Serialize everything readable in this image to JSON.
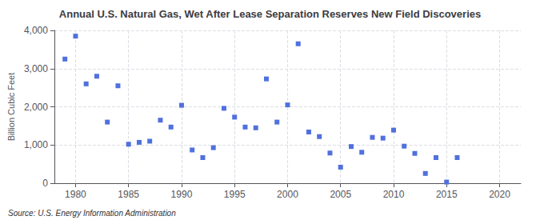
{
  "chart_data": {
    "type": "scatter",
    "title": "Annual U.S. Natural Gas, Wet After Lease Separation Reserves New Field Discoveries",
    "ylabel": "Billion Cubic Feet",
    "annotations": [
      "Source: U.S. Energy Information Administration"
    ],
    "marker": "square",
    "grid": true,
    "xlim": [
      1978,
      2022
    ],
    "xticks": [
      1980,
      1985,
      1990,
      1995,
      2000,
      2005,
      2010,
      2015,
      2020
    ],
    "ylim": [
      0,
      4000
    ],
    "yticks": [
      0,
      {
        "value": 1000,
        "label": "1,000"
      },
      {
        "value": 2000,
        "label": "2,000"
      },
      {
        "value": 3000,
        "label": "3,000"
      },
      {
        "value": 4000,
        "label": "4,000"
      }
    ],
    "x": [
      1979,
      1980,
      1981,
      1982,
      1983,
      1984,
      1985,
      1986,
      1987,
      1988,
      1989,
      1990,
      1991,
      1992,
      1993,
      1994,
      1995,
      1996,
      1997,
      1998,
      1999,
      2000,
      2001,
      2002,
      2003,
      2004,
      2005,
      2006,
      2007,
      2008,
      2009,
      2010,
      2011,
      2012,
      2013,
      2014,
      2015,
      2016
    ],
    "values": [
      3250,
      3850,
      2600,
      2800,
      1600,
      2550,
      1020,
      1070,
      1100,
      1650,
      1470,
      2040,
      870,
      670,
      930,
      1960,
      1730,
      1470,
      1450,
      2730,
      1600,
      2050,
      3650,
      1340,
      1220,
      790,
      420,
      960,
      810,
      1200,
      1180,
      1390,
      970,
      780,
      255,
      670,
      30,
      670
    ]
  }
}
